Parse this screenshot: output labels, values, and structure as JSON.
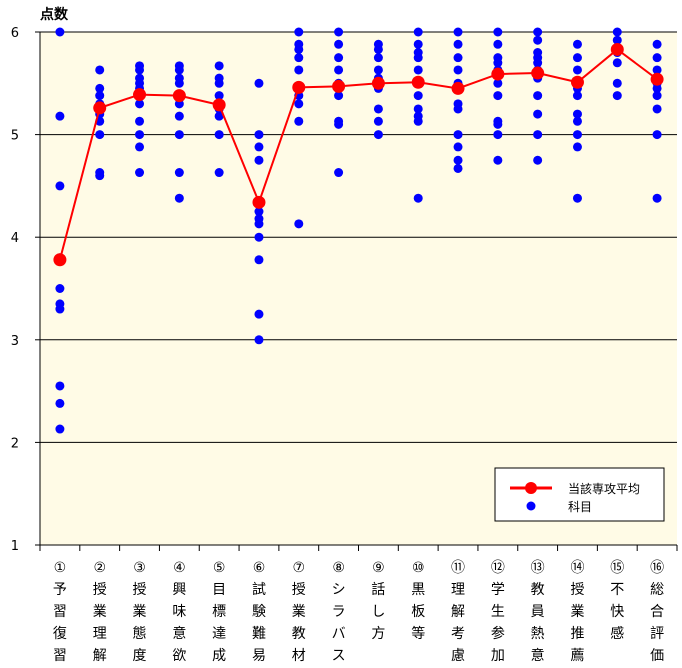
{
  "chart_data": {
    "type": "line",
    "ylabel": "点数",
    "ylim": [
      1,
      6
    ],
    "yticks": [
      "1",
      "2",
      "3",
      "4",
      "5",
      "6"
    ],
    "grid": true,
    "legend_position": "bottom-right",
    "colors": {
      "plot_bg": "#fffbe6",
      "average": "#ff0000",
      "subject": "#0000ff"
    },
    "categories": [
      "①予習復習",
      "②授業理解",
      "③授業態度",
      "④興味意欲",
      "⑤目標達成",
      "⑥試験難易",
      "⑦授業教材",
      "⑧シラバス",
      "⑨話し方",
      "⑩黒板等",
      "⑪理解考慮",
      "⑫学生参加",
      "⑬教員熱意",
      "⑭授業推薦",
      "⑮不快感",
      "⑯総合評価"
    ],
    "series": [
      {
        "name": "当該専攻平均",
        "kind": "line",
        "values": [
          3.78,
          5.26,
          5.39,
          5.38,
          5.29,
          4.34,
          5.46,
          5.47,
          5.5,
          5.51,
          5.45,
          5.59,
          5.6,
          5.51,
          5.83,
          5.54
        ]
      },
      {
        "name": "科目",
        "kind": "scatter",
        "points": [
          [
            6.0,
            5.18,
            4.5,
            3.8,
            3.5,
            3.35,
            3.3,
            2.55,
            2.38,
            2.13
          ],
          [
            5.63,
            5.45,
            5.38,
            5.3,
            5.25,
            5.2,
            5.13,
            5.0,
            4.63,
            4.6
          ],
          [
            5.67,
            5.63,
            5.55,
            5.5,
            5.45,
            5.38,
            5.3,
            5.13,
            5.0,
            4.88,
            4.63
          ],
          [
            5.67,
            5.63,
            5.55,
            5.5,
            5.38,
            5.3,
            5.18,
            5.0,
            4.63,
            4.38
          ],
          [
            5.67,
            5.55,
            5.5,
            5.38,
            5.3,
            5.25,
            5.18,
            5.0,
            4.63
          ],
          [
            5.5,
            5.0,
            4.88,
            4.75,
            4.25,
            4.18,
            4.13,
            4.0,
            3.78,
            3.25,
            3.0
          ],
          [
            6.0,
            5.88,
            5.83,
            5.75,
            5.63,
            5.45,
            5.38,
            5.3,
            5.13,
            4.13
          ],
          [
            6.0,
            5.88,
            5.75,
            5.63,
            5.5,
            5.45,
            5.38,
            5.13,
            5.1,
            4.63
          ],
          [
            5.88,
            5.83,
            5.75,
            5.63,
            5.55,
            5.45,
            5.25,
            5.13,
            5.0
          ],
          [
            6.0,
            5.88,
            5.8,
            5.75,
            5.63,
            5.5,
            5.38,
            5.25,
            5.18,
            5.13,
            4.38
          ],
          [
            6.0,
            5.88,
            5.75,
            5.63,
            5.5,
            5.3,
            5.25,
            5.0,
            4.88,
            4.75,
            4.67
          ],
          [
            6.0,
            5.88,
            5.75,
            5.7,
            5.63,
            5.5,
            5.38,
            5.13,
            5.1,
            5.0,
            4.75
          ],
          [
            6.0,
            5.92,
            5.8,
            5.75,
            5.7,
            5.63,
            5.55,
            5.38,
            5.2,
            5.0,
            4.75
          ],
          [
            5.88,
            5.75,
            5.63,
            5.5,
            5.45,
            5.38,
            5.2,
            5.13,
            5.0,
            4.88,
            4.38
          ],
          [
            6.0,
            5.92,
            5.8,
            5.7,
            5.5,
            5.38
          ],
          [
            5.88,
            5.75,
            5.63,
            5.5,
            5.45,
            5.38,
            5.25,
            5.0,
            4.38
          ]
        ]
      }
    ]
  }
}
